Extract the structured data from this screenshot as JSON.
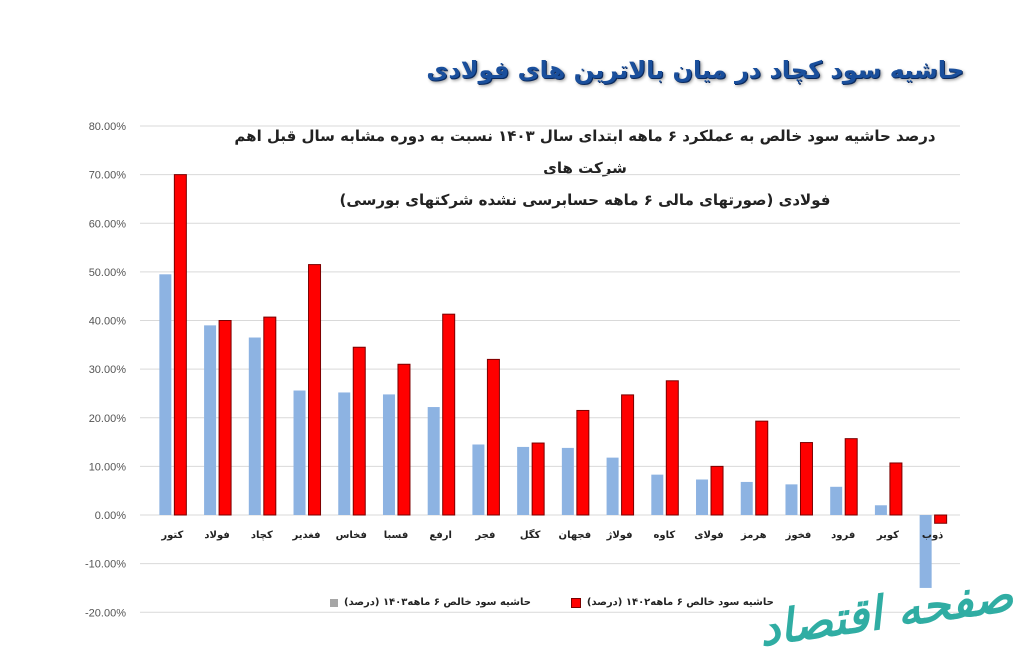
{
  "headline": "حاشیه سود کچاد در میان بالاترین های فولادی",
  "chart_title_line1": "درصد حاشیه سود خالص به عملکرد ۶ ماهه ابتدای سال ۱۴۰۳ نسبت به دوره مشابه سال قبل اهم شرکت های",
  "chart_title_line2": "فولادی (صورتهای مالی ۶ ماهه حسابرسی نشده شرکتهای بورسی)",
  "legend": {
    "series_1403": "حاشیه سود خالص ۶ ماهه۱۴۰۳ (درصد)",
    "series_1402": "حاشیه سود خالص ۶ ماهه۱۴۰۲ (درصد)"
  },
  "watermark": "صفحه اقتصاد",
  "colors": {
    "series_1403": "#8db3e2",
    "series_1402": "#ff0000",
    "series_1402_border": "#7a0000",
    "headline": "#1a4f9c",
    "gridline": "#d9d9d9",
    "watermark": "#1aa59a"
  },
  "chart_data": {
    "type": "bar",
    "title": "درصد حاشیه سود خالص به عملکرد ۶ ماهه ابتدای سال ۱۴۰۳ نسبت به دوره مشابه سال قبل اهم شرکت های فولادی (صورتهای مالی ۶ ماهه حسابرسی نشده شرکتهای بورسی)",
    "xlabel": "",
    "ylabel": "",
    "ylim": [
      -0.2,
      0.8
    ],
    "yticks": [
      "80.00%",
      "70.00%",
      "60.00%",
      "50.00%",
      "40.00%",
      "30.00%",
      "20.00%",
      "10.00%",
      "0.00%",
      "-10.00%",
      "-20.00%"
    ],
    "grid": true,
    "legend_position": "bottom",
    "categories": [
      "کتور",
      "فولاد",
      "کچاد",
      "فغدیر",
      "فخاس",
      "فسبا",
      "ارفع",
      "فجر",
      "کگل",
      "فجهان",
      "فولاژ",
      "کاوه",
      "فولای",
      "هرمز",
      "فخوز",
      "فرود",
      "کویر",
      "ذوب"
    ],
    "series": [
      {
        "name": "حاشیه سود خالص ۶ ماهه۱۴۰۳ (درصد)",
        "values": [
          49.5,
          39.0,
          36.5,
          25.6,
          25.2,
          24.8,
          22.2,
          14.5,
          14.0,
          13.8,
          11.8,
          8.3,
          7.3,
          6.8,
          6.3,
          5.8,
          2.0,
          -15.0
        ]
      },
      {
        "name": "حاشیه سود خالص ۶ ماهه۱۴۰۲ (درصد)",
        "values": [
          70.0,
          40.0,
          40.7,
          51.5,
          34.5,
          31.0,
          41.3,
          32.0,
          14.8,
          21.5,
          24.7,
          27.6,
          10.0,
          19.3,
          14.9,
          15.7,
          10.7,
          -1.7
        ]
      }
    ]
  }
}
